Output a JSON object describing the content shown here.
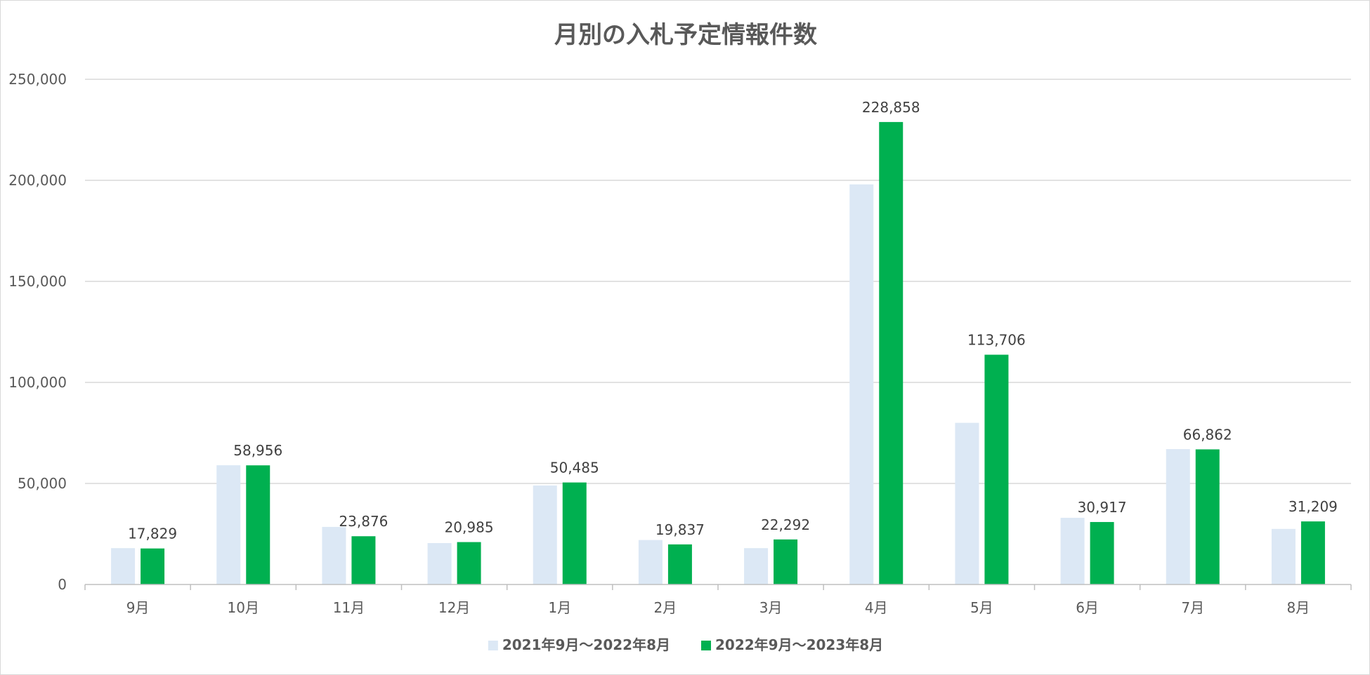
{
  "chart_data": {
    "type": "bar",
    "title": "月別の入札予定情報件数",
    "xlabel": "",
    "ylabel": "",
    "categories": [
      "9月",
      "10月",
      "11月",
      "12月",
      "1月",
      "2月",
      "3月",
      "4月",
      "5月",
      "6月",
      "7月",
      "8月"
    ],
    "ylim": [
      0,
      250000
    ],
    "yticks": [
      0,
      50000,
      100000,
      150000,
      200000,
      250000
    ],
    "ytick_labels": [
      "0",
      "50,000",
      "100,000",
      "150,000",
      "200,000",
      "250,000"
    ],
    "grid": true,
    "legend_position": "bottom",
    "series": [
      {
        "name": "2021年9月～2022年8月",
        "color": "#dce8f5",
        "values": [
          18000,
          59000,
          28500,
          20500,
          49000,
          22000,
          18000,
          198000,
          80000,
          33000,
          67000,
          27500
        ],
        "data_labels": []
      },
      {
        "name": "2022年9月～2023年8月",
        "color": "#00b050",
        "values": [
          17829,
          58956,
          23876,
          20985,
          50485,
          19837,
          22292,
          228858,
          113706,
          30917,
          66862,
          31209
        ],
        "data_labels": [
          "17,829",
          "58,956",
          "23,876",
          "20,985",
          "50,485",
          "19,837",
          "22,292",
          "228,858",
          "113,706",
          "30,917",
          "66,862",
          "31,209"
        ]
      }
    ]
  }
}
